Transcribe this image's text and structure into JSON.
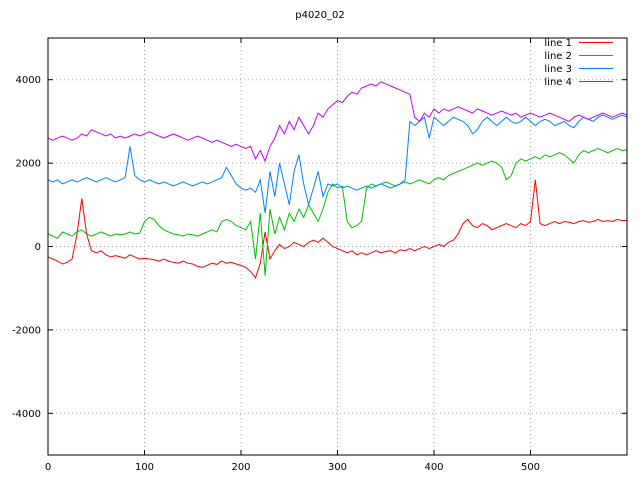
{
  "chart_data": {
    "type": "line",
    "title": "p4020_02",
    "xlabel": "",
    "ylabel": "",
    "xlim": [
      0,
      600
    ],
    "ylim": [
      -5000,
      5000
    ],
    "x_ticks": [
      0,
      100,
      200,
      300,
      400,
      500
    ],
    "y_ticks": [
      -4000,
      -2000,
      0,
      2000,
      4000
    ],
    "grid": true,
    "legend_position": "top-right",
    "x_start": 0,
    "x_step": 5,
    "series": [
      {
        "name": "line 1",
        "color": "#ff0000",
        "values": [
          -250,
          -300,
          -350,
          -420,
          -380,
          -300,
          300,
          1150,
          300,
          -100,
          -150,
          -100,
          -200,
          -250,
          -220,
          -250,
          -280,
          -200,
          -250,
          -300,
          -280,
          -300,
          -320,
          -350,
          -300,
          -350,
          -380,
          -400,
          -350,
          -400,
          -420,
          -480,
          -500,
          -450,
          -400,
          -430,
          -350,
          -400,
          -380,
          -420,
          -450,
          -500,
          -600,
          -750,
          -400,
          350,
          -300,
          -100,
          50,
          -50,
          0,
          100,
          50,
          0,
          100,
          150,
          100,
          200,
          100,
          0,
          -50,
          -100,
          -150,
          -100,
          -200,
          -150,
          -200,
          -150,
          -100,
          -150,
          -120,
          -100,
          -150,
          -80,
          -100,
          -50,
          -100,
          -50,
          0,
          -50,
          0,
          50,
          0,
          100,
          150,
          300,
          550,
          650,
          500,
          450,
          550,
          500,
          400,
          450,
          500,
          550,
          500,
          450,
          550,
          500,
          600,
          1600,
          550,
          500,
          550,
          600,
          550,
          600,
          580,
          550,
          600,
          620,
          580,
          600,
          650,
          600,
          620,
          600,
          650,
          620,
          630
        ]
      },
      {
        "name": "line 2",
        "color": "#00c000",
        "values": [
          300,
          250,
          200,
          350,
          300,
          250,
          350,
          400,
          300,
          250,
          300,
          350,
          300,
          250,
          300,
          280,
          300,
          350,
          300,
          320,
          600,
          700,
          650,
          500,
          400,
          350,
          300,
          280,
          250,
          300,
          280,
          250,
          300,
          350,
          400,
          350,
          600,
          650,
          600,
          500,
          450,
          400,
          600,
          -300,
          800,
          -700,
          900,
          300,
          700,
          400,
          800,
          600,
          900,
          700,
          1000,
          800,
          600,
          900,
          1300,
          1500,
          1400,
          1450,
          600,
          450,
          500,
          600,
          1400,
          1500,
          1450,
          1500,
          1550,
          1500,
          1450,
          1500,
          1550,
          1500,
          1550,
          1600,
          1550,
          1500,
          1600,
          1650,
          1600,
          1700,
          1750,
          1800,
          1850,
          1900,
          1950,
          2000,
          1950,
          2000,
          2050,
          2000,
          1900,
          1600,
          1700,
          2000,
          2100,
          2050,
          2100,
          2150,
          2100,
          2200,
          2150,
          2200,
          2250,
          2200,
          2100,
          2000,
          2200,
          2300,
          2250,
          2300,
          2350,
          2300,
          2250,
          2300,
          2350,
          2300,
          2320
        ]
      },
      {
        "name": "line 3",
        "color": "#0080ff",
        "values": [
          1600,
          1550,
          1600,
          1500,
          1550,
          1600,
          1550,
          1600,
          1650,
          1600,
          1550,
          1600,
          1650,
          1600,
          1550,
          1600,
          1650,
          2400,
          1700,
          1600,
          1550,
          1600,
          1550,
          1500,
          1550,
          1500,
          1450,
          1500,
          1550,
          1500,
          1450,
          1500,
          1550,
          1500,
          1550,
          1600,
          1650,
          1900,
          1700,
          1500,
          1400,
          1350,
          1400,
          1300,
          1600,
          800,
          1800,
          1200,
          2000,
          1500,
          1000,
          1800,
          2200,
          1500,
          1000,
          1400,
          1800,
          1200,
          1500,
          1450,
          1500,
          1400,
          1450,
          1400,
          1350,
          1400,
          1450,
          1400,
          1450,
          1500,
          1450,
          1400,
          1450,
          1500,
          1600,
          3000,
          2900,
          3000,
          3100,
          2600,
          3100,
          3000,
          2900,
          3000,
          3100,
          3050,
          3000,
          2900,
          2700,
          2800,
          3000,
          3100,
          3000,
          2900,
          3000,
          3100,
          3000,
          2950,
          3000,
          3100,
          3000,
          2900,
          3000,
          3050,
          3000,
          2900,
          2950,
          3000,
          2900,
          2850,
          3000,
          3100,
          3050,
          3000,
          3100,
          3150,
          3100,
          3050,
          3100,
          3150,
          3100
        ]
      },
      {
        "name": "line 4",
        "color": "#c000ff",
        "values": [
          2600,
          2550,
          2600,
          2650,
          2600,
          2550,
          2600,
          2700,
          2650,
          2800,
          2750,
          2700,
          2650,
          2700,
          2600,
          2650,
          2600,
          2650,
          2700,
          2650,
          2700,
          2750,
          2700,
          2650,
          2600,
          2650,
          2700,
          2650,
          2600,
          2550,
          2600,
          2650,
          2600,
          2550,
          2500,
          2550,
          2500,
          2450,
          2400,
          2450,
          2400,
          2350,
          2400,
          2100,
          2300,
          2050,
          2400,
          2600,
          2900,
          2700,
          3000,
          2800,
          3100,
          2900,
          2700,
          2900,
          3200,
          3100,
          3300,
          3400,
          3500,
          3450,
          3600,
          3700,
          3650,
          3800,
          3850,
          3900,
          3850,
          3950,
          3900,
          3850,
          3800,
          3750,
          3700,
          3650,
          3100,
          3000,
          3200,
          3100,
          3300,
          3200,
          3300,
          3250,
          3300,
          3350,
          3300,
          3250,
          3200,
          3300,
          3250,
          3200,
          3150,
          3200,
          3250,
          3200,
          3150,
          3200,
          3100,
          3150,
          3200,
          3150,
          3100,
          3150,
          3200,
          3150,
          3100,
          3050,
          3000,
          3100,
          3150,
          3100,
          3050,
          3100,
          3150,
          3200,
          3150,
          3100,
          3150,
          3200,
          3150
        ]
      }
    ]
  }
}
